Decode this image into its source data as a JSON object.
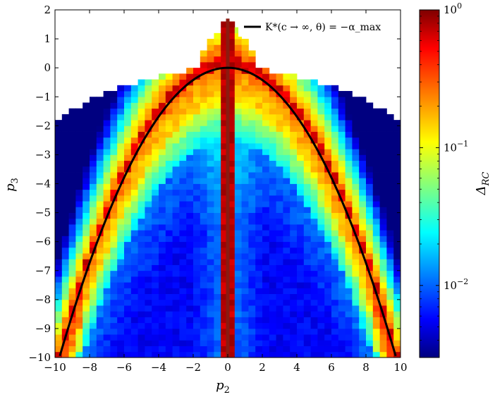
{
  "chart_data": {
    "type": "heatmap",
    "title": "",
    "xlabel": "p",
    "xlabel_sub": "2",
    "ylabel": "p",
    "ylabel_sub": "3",
    "xlim": [
      -10,
      10
    ],
    "ylim": [
      -10,
      2
    ],
    "x_ticks": [
      -10,
      -8,
      -6,
      -4,
      -2,
      0,
      2,
      4,
      6,
      8,
      10
    ],
    "x_tick_labels": [
      "−10",
      "−8",
      "−6",
      "−4",
      "−2",
      "0",
      "2",
      "4",
      "6",
      "8",
      "10"
    ],
    "y_ticks": [
      -10,
      -9,
      -8,
      -7,
      -6,
      -5,
      -4,
      -3,
      -2,
      -1,
      0,
      1,
      2
    ],
    "y_tick_labels": [
      "−10",
      "−9",
      "−8",
      "−7",
      "−6",
      "−5",
      "−4",
      "−3",
      "−2",
      "−1",
      "0",
      "1",
      "2"
    ],
    "curve": {
      "name": "K*(c → ∞, θ) = −α_max",
      "equation": "p3 = -p2^2 / 9.5",
      "p2_range": [
        -9.72,
        9.72
      ],
      "color": "#000000"
    },
    "center_line": {
      "p2": 0,
      "p3_range": [
        -10,
        1.7
      ],
      "color": "#8b1a10"
    },
    "colorbar": {
      "label": "Δ",
      "label_sub": "RC",
      "scale": "log",
      "range": [
        0.003,
        1
      ],
      "ticks": [
        {
          "value": 1,
          "mantissa": "10",
          "exponent": "0"
        },
        {
          "value": 0.1,
          "mantissa": "10",
          "exponent": "−1"
        },
        {
          "value": 0.01,
          "mantissa": "10",
          "exponent": "−2"
        }
      ],
      "colormap": "jet"
    },
    "legend_position": "top-right",
    "grid": false
  }
}
